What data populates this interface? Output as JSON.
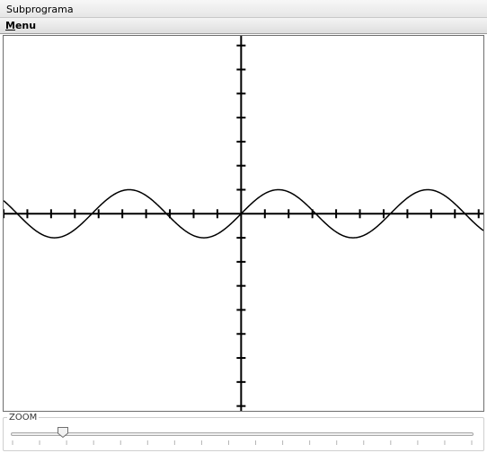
{
  "window": {
    "title": "Subprograma"
  },
  "menubar": {
    "menu_prefix": "M",
    "menu_rest": "enu"
  },
  "zoom": {
    "label": "ZOOM",
    "value": 0.11,
    "tick_count": 18
  },
  "chart_data": {
    "type": "line",
    "title": "",
    "xlabel": "",
    "ylabel": "",
    "function": "y = sin(x)",
    "x_range": [
      -10,
      10.2
    ],
    "y_range": [
      -8.2,
      7.4
    ],
    "x_tick_step": 1,
    "y_tick_step": 1,
    "tick_labels": false,
    "grid": false,
    "series": [
      {
        "expression": "sin(x)",
        "color": "#000000"
      }
    ]
  },
  "colors": {
    "curve": "#000000",
    "axes": "#000000"
  }
}
